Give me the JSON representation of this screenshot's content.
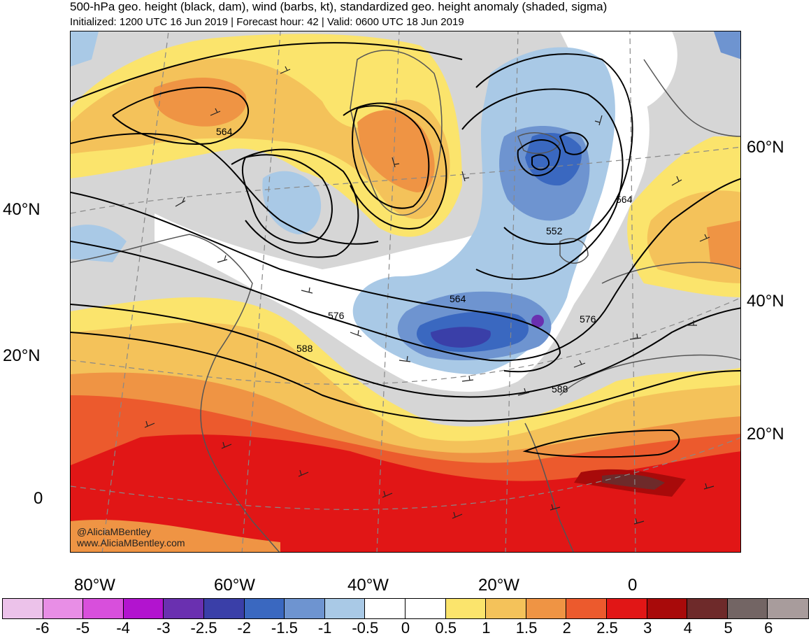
{
  "header": {
    "title": "500-hPa geo. height (black, dam), wind (barbs, kt), standardized geo. height anomaly (shaded, sigma)",
    "subtitle": "Initialized: 1200 UTC 16 Jun 2019 | Forecast hour: 42 | Valid: 0600 UTC 18 Jun 2019"
  },
  "map": {
    "region": "North Atlantic",
    "left_lat_labels": [
      "40°N",
      "20°N",
      "0"
    ],
    "right_lat_labels": [
      "60°N",
      "40°N",
      "20°N"
    ],
    "lon_labels": [
      "80°W",
      "60°W",
      "40°W",
      "20°W",
      "0"
    ],
    "contour_labels": [
      "564",
      "564",
      "552",
      "564",
      "576",
      "576",
      "588",
      "588"
    ],
    "credit": [
      "@AliciaMBentley",
      "www.AliciaMBentley.com"
    ]
  },
  "colorbar": {
    "colors": [
      "#ecc2ea",
      "#e88ee6",
      "#d84fdc",
      "#b214cf",
      "#6a30b0",
      "#3a3fa8",
      "#3a68c0",
      "#6e94d0",
      "#a9c9e6",
      "#ffffff",
      "#ffffff",
      "#fbe46c",
      "#f4c25a",
      "#ef9444",
      "#ec5a2d",
      "#e11616",
      "#a80a0a",
      "#6e2a2a",
      "#736564",
      "#a89c9c"
    ],
    "ticks": [
      "-6",
      "-5",
      "-4",
      "-3",
      "-2.5",
      "-2",
      "-1.5",
      "-1",
      "-0.5",
      "0",
      "0.5",
      "1",
      "1.5",
      "2",
      "2.5",
      "3",
      "4",
      "5",
      "6"
    ]
  }
}
